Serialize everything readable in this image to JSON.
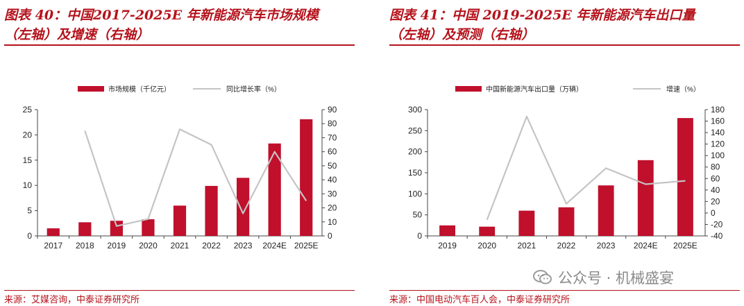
{
  "panels": [
    {
      "title_line1": "图表 40：中国2017-2025E 年新能源汽车市场规模",
      "title_line2": "（左轴）及增速（右轴）",
      "source": "来源：艾媒咨询，中泰证券研究所"
    },
    {
      "title_line1": "图表 41：中国 2019-2025E 年新能源汽车出口量",
      "title_line2": "（左轴）及预测（右轴）",
      "source": "来源：中国电动汽车百人会，中泰证券研究所"
    }
  ],
  "watermark": {
    "text": "公众号 · 机械盛宴",
    "icon": "wechat-icon"
  },
  "colors": {
    "bar": "#c0102c",
    "line": "#c4c4c4",
    "accent": "#b5121b"
  },
  "chart_data": [
    {
      "type": "bar",
      "categories": [
        "2017",
        "2018",
        "2019",
        "2020",
        "2021",
        "2022",
        "2023",
        "2024E",
        "2025E"
      ],
      "series": [
        {
          "name": "市场规模（千亿元）",
          "type": "bar",
          "axis": "left",
          "values": [
            1.5,
            2.7,
            3.0,
            3.3,
            6.0,
            9.9,
            11.5,
            18.3,
            23.1
          ]
        },
        {
          "name": "同比增长率（%）",
          "type": "line",
          "axis": "right",
          "values": [
            null,
            75,
            7,
            12,
            76,
            65,
            16,
            60,
            25
          ]
        }
      ],
      "y_left": {
        "min": 0,
        "max": 25,
        "ticks": [
          0,
          5,
          10,
          15,
          20,
          25
        ]
      },
      "y_right": {
        "min": 0,
        "max": 90,
        "ticks": [
          0,
          10,
          20,
          30,
          40,
          50,
          60,
          70,
          80,
          90
        ]
      },
      "legend": "top",
      "grid": false
    },
    {
      "type": "bar",
      "categories": [
        "2019",
        "2020",
        "2021",
        "2022",
        "2023",
        "2024E",
        "2025E"
      ],
      "series": [
        {
          "name": "中国新能源汽车出口量（万辆）",
          "type": "bar",
          "axis": "left",
          "values": [
            25,
            22,
            60,
            68,
            120,
            180,
            280
          ]
        },
        {
          "name": "增速（%）",
          "type": "line",
          "axis": "right",
          "values": [
            null,
            -12,
            168,
            16,
            78,
            50,
            56
          ]
        }
      ],
      "y_left": {
        "min": 0,
        "max": 300,
        "ticks": [
          0,
          50,
          100,
          150,
          200,
          250,
          300
        ]
      },
      "y_right": {
        "min": -40,
        "max": 180,
        "ticks": [
          -40,
          -20,
          0,
          20,
          40,
          60,
          80,
          100,
          120,
          140,
          160,
          180
        ]
      },
      "legend": "top",
      "grid": false
    }
  ]
}
